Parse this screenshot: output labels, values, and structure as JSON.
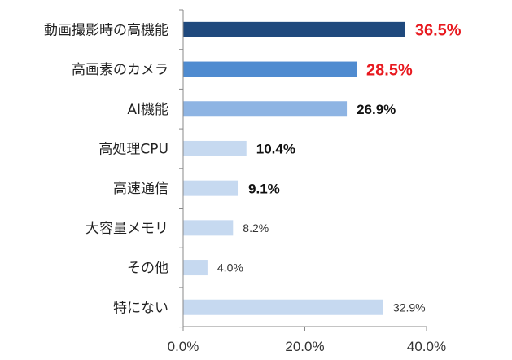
{
  "chart_data": {
    "type": "bar",
    "orientation": "horizontal",
    "categories": [
      "動画撮影時の高機能",
      "高画素のカメラ",
      "AI機能",
      "高処理CPU",
      "高速通信",
      "大容量メモリ",
      "その他",
      "特にない"
    ],
    "values": [
      36.5,
      28.5,
      26.9,
      10.4,
      9.1,
      8.2,
      4.0,
      32.9
    ],
    "data_labels": [
      "36.5%",
      "28.5%",
      "26.9%",
      "10.4%",
      "9.1%",
      "8.2%",
      "4.0%",
      "32.9%"
    ],
    "xlim": [
      0,
      40
    ],
    "x_ticks": [
      "0.0%",
      "20.0%",
      "40.0%"
    ],
    "x_tick_values": [
      0,
      20,
      40
    ],
    "grid": false,
    "legend": "none",
    "bar_colors": [
      "#1f497d",
      "#4f8bd0",
      "#8eb4e3",
      "#c6d9f0",
      "#c6d9f0",
      "#c6d9f0",
      "#c6d9f0",
      "#c6d9f0"
    ],
    "label_colors": [
      "#e8191f",
      "#e8191f",
      "#111111",
      "#111111",
      "#111111",
      "#333333",
      "#333333",
      "#333333"
    ],
    "label_emphasis": [
      "bold-large",
      "bold-large",
      "bold",
      "bold",
      "bold",
      "normal",
      "normal",
      "normal"
    ]
  }
}
